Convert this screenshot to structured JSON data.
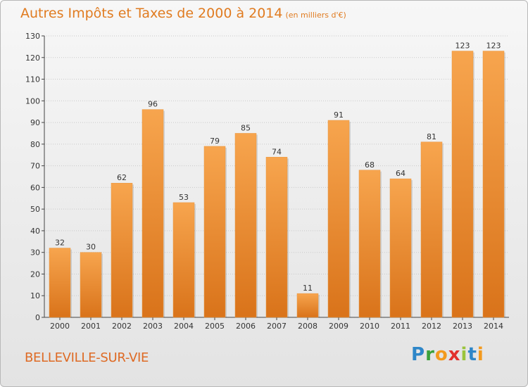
{
  "title": "Autres Impôts et Taxes de 2000 à 2014",
  "subtitle": "(en milliers d'€)",
  "city": "BELLEVILLE-SUR-VIE",
  "logo": {
    "text": "Proxiti",
    "letters": [
      {
        "ch": "P",
        "color": "#2e86c8"
      },
      {
        "ch": "r",
        "color": "#3aa13a"
      },
      {
        "ch": "o",
        "color": "#f39a1e"
      },
      {
        "ch": "x",
        "color": "#e2312d"
      },
      {
        "ch": "i",
        "color": "#9bc43c"
      },
      {
        "ch": "t",
        "color": "#2e86c8"
      },
      {
        "ch": "i",
        "color": "#f39a1e"
      }
    ]
  },
  "colors": {
    "bar_light": "#f7a54e",
    "bar_dark": "#d9731a",
    "text": "#333333",
    "accent": "#e07b20"
  },
  "chart_data": {
    "type": "bar",
    "categories": [
      "2000",
      "2001",
      "2002",
      "2003",
      "2004",
      "2005",
      "2006",
      "2007",
      "2008",
      "2009",
      "2010",
      "2011",
      "2012",
      "2013",
      "2014"
    ],
    "values": [
      32,
      30,
      62,
      96,
      53,
      79,
      85,
      74,
      11,
      91,
      68,
      64,
      81,
      123,
      123
    ],
    "title": "Autres Impôts et Taxes de 2000 à 2014",
    "subtitle": "(en milliers d'€)",
    "ylim": [
      0,
      130
    ],
    "yticks": [
      0,
      10,
      20,
      30,
      40,
      50,
      60,
      70,
      80,
      90,
      100,
      110,
      120,
      130
    ],
    "grid": true
  }
}
